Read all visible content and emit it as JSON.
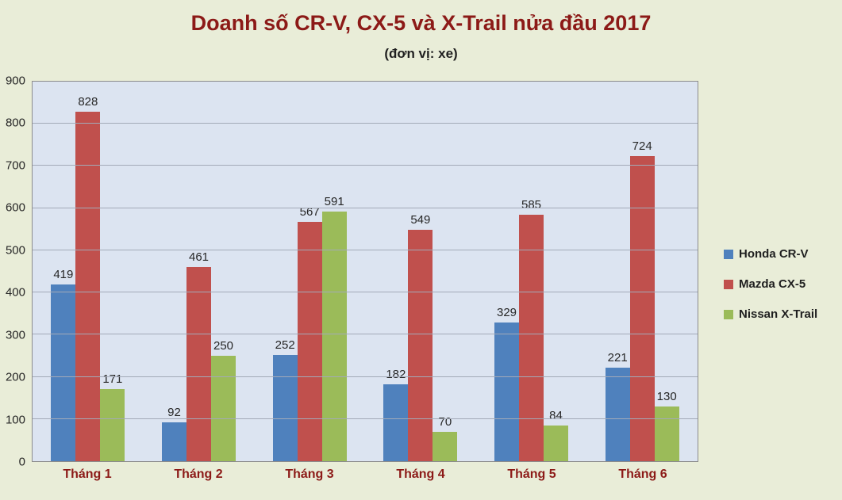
{
  "chart": {
    "title": "Doanh số CR-V, CX-5 và X-Trail nửa đầu 2017",
    "subtitle": "(đơn vị: xe)"
  },
  "chart_data": {
    "type": "bar",
    "title": "Doanh số CR-V, CX-5 và X-Trail nửa đầu 2017",
    "subtitle": "(đơn vị: xe)",
    "categories": [
      "Tháng 1",
      "Tháng 2",
      "Tháng 3",
      "Tháng 4",
      "Tháng 5",
      "Tháng 6"
    ],
    "series": [
      {
        "name": "Honda CR-V",
        "color": "#4f81bd",
        "values": [
          419,
          92,
          252,
          182,
          329,
          221
        ]
      },
      {
        "name": "Mazda CX-5",
        "color": "#c0504d",
        "values": [
          828,
          461,
          567,
          549,
          585,
          724
        ]
      },
      {
        "name": "Nissan X-Trail",
        "color": "#9bbb59",
        "values": [
          171,
          250,
          591,
          70,
          84,
          130
        ]
      }
    ],
    "xlabel": "",
    "ylabel": "",
    "ylim": [
      0,
      900
    ],
    "ytick_step": 100,
    "grid": true,
    "legend_position": "right",
    "plot_background": "#dce4f1",
    "page_background": "#e9edd8",
    "title_color": "#8c1a17",
    "axis_label_color": "#8c1a17"
  }
}
